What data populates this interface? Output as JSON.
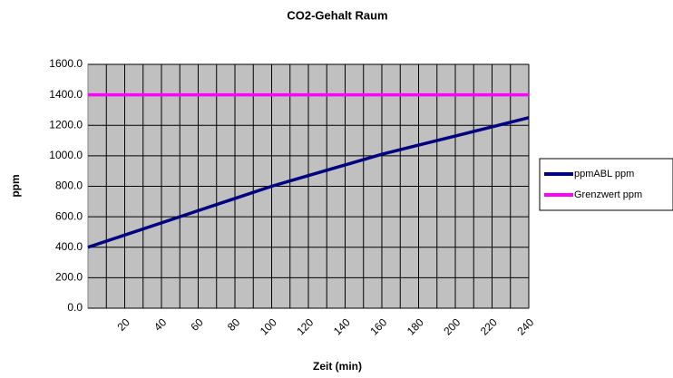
{
  "chart_data": {
    "type": "line",
    "title": "CO2-Gehalt  Raum",
    "xlabel": "Zeit (min)",
    "ylabel": "ppm",
    "x": [
      0,
      20,
      40,
      60,
      80,
      100,
      120,
      140,
      160,
      180,
      200,
      220,
      240
    ],
    "series": [
      {
        "name": "ppmABL ppm",
        "color": "#000080",
        "values": [
          400,
          480,
          560,
          640,
          720,
          800,
          870,
          940,
          1010,
          1070,
          1130,
          1190,
          1250
        ]
      },
      {
        "name": "Grenzwert ppm",
        "color": "#ff00ff",
        "values": [
          1400,
          1400,
          1400,
          1400,
          1400,
          1400,
          1400,
          1400,
          1400,
          1400,
          1400,
          1400,
          1400
        ]
      }
    ],
    "xlim": [
      0,
      240
    ],
    "xticks": [
      20,
      40,
      60,
      80,
      100,
      120,
      140,
      160,
      180,
      200,
      220,
      240
    ],
    "xminorticks": [
      10,
      30,
      50,
      70,
      90,
      110,
      130,
      150,
      170,
      190,
      210,
      230
    ],
    "ylim": [
      0,
      1600
    ],
    "yticks": [
      {
        "value": 0,
        "label": "0.0"
      },
      {
        "value": 200,
        "label": "200.0"
      },
      {
        "value": 400,
        "label": "400.0"
      },
      {
        "value": 600,
        "label": "600.0"
      },
      {
        "value": 800,
        "label": "800.0"
      },
      {
        "value": 1000,
        "label": "1000.0"
      },
      {
        "value": 1200,
        "label": "1200.0"
      },
      {
        "value": 1400,
        "label": "1400.0"
      },
      {
        "value": 1600,
        "label": "1600.0"
      }
    ],
    "grid": true,
    "legend": "right"
  }
}
